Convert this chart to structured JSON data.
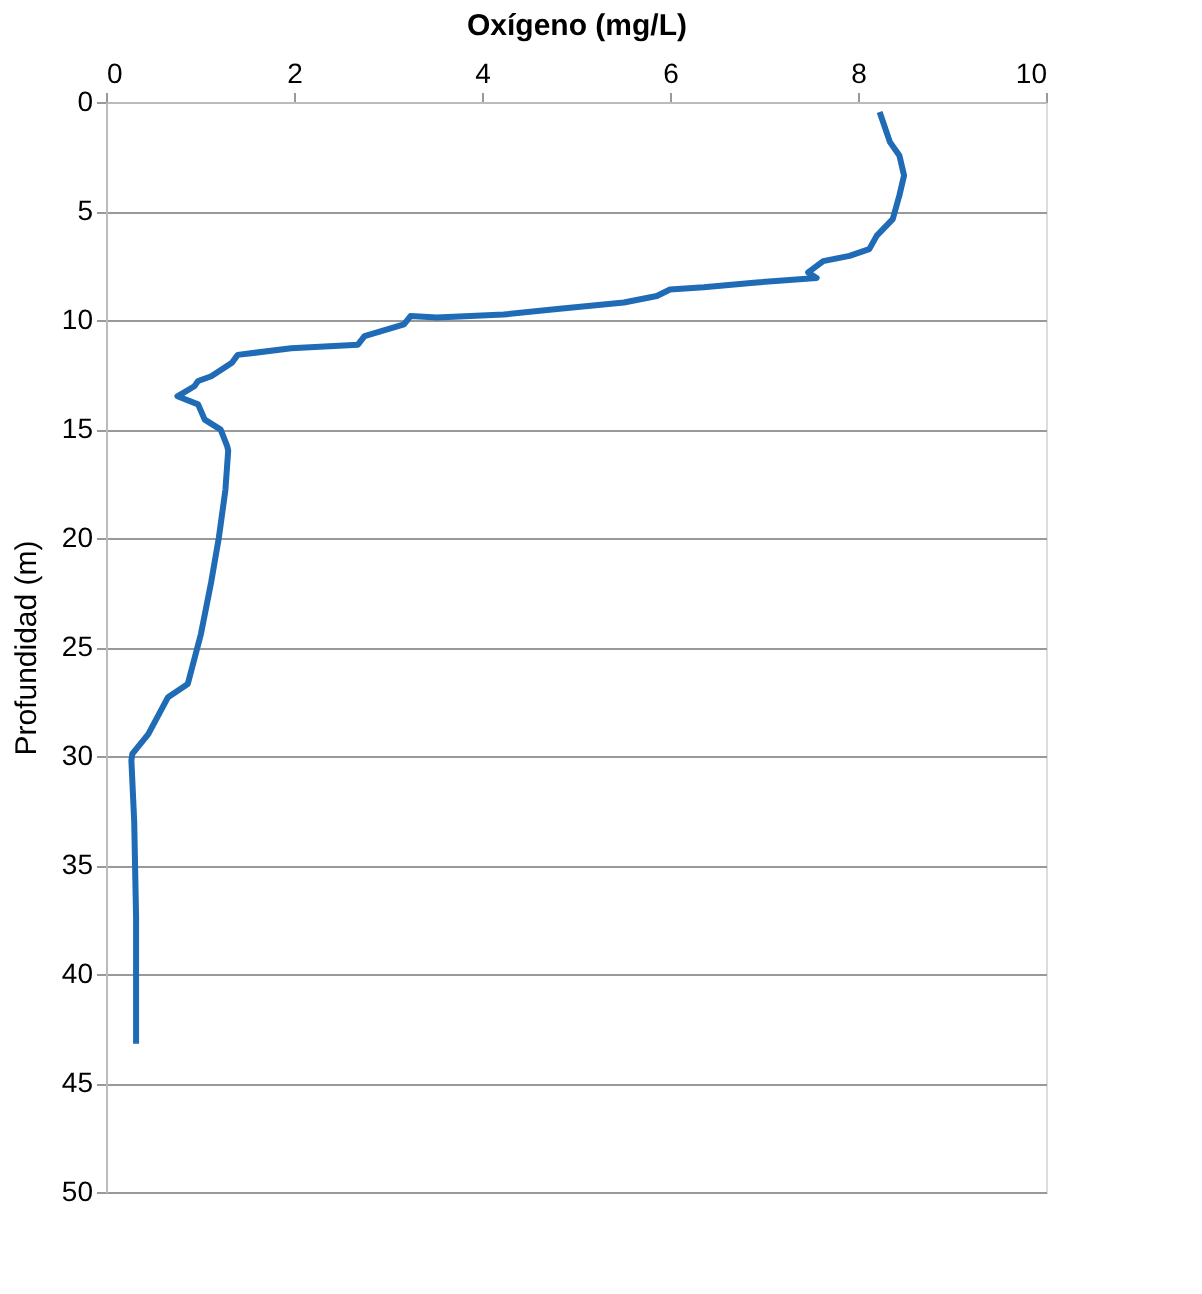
{
  "chart_data": {
    "type": "line",
    "xlabel": "Oxígeno (mg/L)",
    "ylabel": "Profundidad (m)",
    "xlim": [
      0,
      10
    ],
    "xticks": [
      0,
      2,
      4,
      6,
      8,
      10
    ],
    "ylim": [
      50,
      0
    ],
    "yticks": [
      0,
      5,
      10,
      15,
      20,
      25,
      30,
      35,
      40,
      45,
      50
    ],
    "grid": "y",
    "marker": "none",
    "line_style": "solid",
    "series": [
      {
        "color": "#1f6bb5",
        "x": [
          8.23,
          8.34,
          8.44,
          8.49,
          8.44,
          8.37,
          8.2,
          8.12,
          7.91,
          7.63,
          7.47,
          7.56,
          6.92,
          6.36,
          6.0,
          5.86,
          5.51,
          4.8,
          4.23,
          3.52,
          3.24,
          3.17,
          2.75,
          2.68,
          1.97,
          1.4,
          1.34,
          1.12,
          0.98,
          0.94,
          0.76,
          0.98,
          1.05,
          1.22,
          1.29,
          1.3,
          1.27,
          1.2,
          1.12,
          1.01,
          0.87,
          0.66,
          0.45,
          0.28,
          0.27,
          0.3,
          0.32,
          0.32
        ],
        "values": [
          0.46,
          1.84,
          2.45,
          3.37,
          4.29,
          5.37,
          6.13,
          6.75,
          7.06,
          7.3,
          7.82,
          8.07,
          8.28,
          8.5,
          8.6,
          8.9,
          9.2,
          9.5,
          9.75,
          9.88,
          9.82,
          10.2,
          10.74,
          11.13,
          11.3,
          11.6,
          11.96,
          12.58,
          12.8,
          13.04,
          13.5,
          13.87,
          14.57,
          15.03,
          15.8,
          16.0,
          17.8,
          20.0,
          22.0,
          24.4,
          26.7,
          27.3,
          29.0,
          29.9,
          30.2,
          33.0,
          37.4,
          43.2
        ]
      }
    ]
  }
}
